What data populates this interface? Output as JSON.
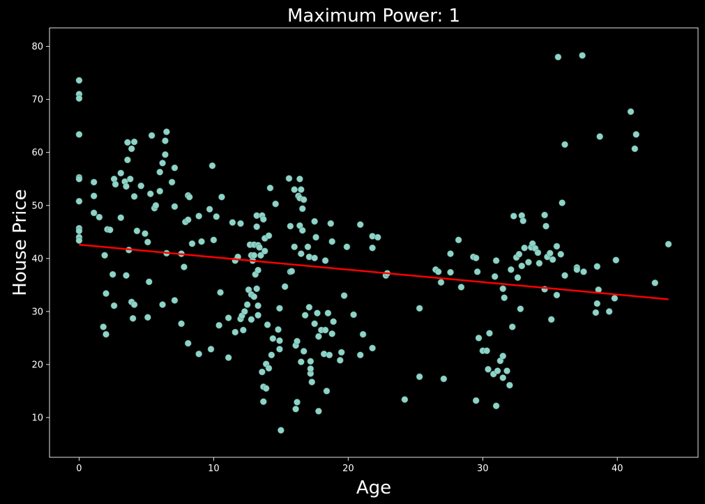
{
  "chart_data": {
    "type": "scatter",
    "title": "Maximum Power: 1",
    "xlabel": "Age",
    "ylabel": "House Price",
    "xlim": [
      -2.2,
      46.0
    ],
    "ylim": [
      2.5,
      83.5
    ],
    "xticks": [
      0,
      10,
      20,
      30,
      40
    ],
    "yticks": [
      10,
      20,
      30,
      40,
      50,
      60,
      70,
      80
    ],
    "grid": false,
    "legend": "none",
    "colors": {
      "background": "#000000",
      "points": "#8dd3c7",
      "fit_line": "#ff0000",
      "text": "#ffffff"
    },
    "points": [
      [
        0,
        73.6
      ],
      [
        0,
        71.0
      ],
      [
        0,
        70.2
      ],
      [
        0,
        63.4
      ],
      [
        0,
        55.3
      ],
      [
        0,
        55.0
      ],
      [
        0,
        50.8
      ],
      [
        0,
        45.7
      ],
      [
        0,
        45.2
      ],
      [
        0,
        44.0
      ],
      [
        0,
        43.4
      ],
      [
        1.1,
        54.4
      ],
      [
        1.1,
        51.8
      ],
      [
        1.1,
        48.6
      ],
      [
        1.5,
        47.8
      ],
      [
        1.8,
        27.1
      ],
      [
        1.9,
        40.6
      ],
      [
        2.0,
        33.4
      ],
      [
        2.0,
        25.7
      ],
      [
        2.1,
        45.5
      ],
      [
        2.3,
        45.4
      ],
      [
        2.5,
        37.0
      ],
      [
        2.6,
        31.1
      ],
      [
        2.6,
        55.0
      ],
      [
        2.7,
        54.0
      ],
      [
        3.1,
        56.1
      ],
      [
        3.1,
        47.7
      ],
      [
        3.4,
        54.5
      ],
      [
        3.5,
        53.6
      ],
      [
        3.5,
        36.8
      ],
      [
        3.6,
        58.6
      ],
      [
        3.6,
        61.9
      ],
      [
        3.7,
        41.6
      ],
      [
        3.8,
        55.0
      ],
      [
        3.9,
        60.7
      ],
      [
        3.9,
        31.8
      ],
      [
        4.0,
        28.7
      ],
      [
        4.1,
        31.3
      ],
      [
        4.1,
        62.0
      ],
      [
        4.1,
        51.7
      ],
      [
        4.3,
        45.2
      ],
      [
        4.6,
        53.7
      ],
      [
        4.9,
        44.7
      ],
      [
        5.1,
        43.1
      ],
      [
        5.1,
        28.9
      ],
      [
        5.2,
        35.6
      ],
      [
        5.3,
        52.2
      ],
      [
        5.4,
        63.2
      ],
      [
        5.6,
        49.5
      ],
      [
        5.7,
        50.0
      ],
      [
        6.0,
        56.3
      ],
      [
        6.0,
        52.7
      ],
      [
        6.2,
        31.3
      ],
      [
        6.2,
        58.0
      ],
      [
        6.4,
        62.2
      ],
      [
        6.4,
        59.6
      ],
      [
        6.5,
        63.9
      ],
      [
        6.5,
        41.0
      ],
      [
        6.9,
        54.4
      ],
      [
        7.1,
        32.1
      ],
      [
        7.1,
        57.1
      ],
      [
        7.1,
        49.8
      ],
      [
        7.6,
        27.7
      ],
      [
        7.6,
        40.9
      ],
      [
        7.8,
        38.4
      ],
      [
        7.9,
        46.9
      ],
      [
        8.1,
        47.3
      ],
      [
        8.1,
        24.0
      ],
      [
        8.1,
        51.9
      ],
      [
        8.2,
        51.6
      ],
      [
        8.4,
        42.8
      ],
      [
        8.9,
        22.0
      ],
      [
        8.9,
        48.0
      ],
      [
        9.1,
        43.2
      ],
      [
        9.7,
        49.3
      ],
      [
        9.8,
        22.9
      ],
      [
        9.9,
        57.5
      ],
      [
        10.0,
        43.5
      ],
      [
        10.2,
        47.9
      ],
      [
        10.4,
        27.4
      ],
      [
        10.5,
        33.6
      ],
      [
        10.6,
        51.6
      ],
      [
        11.1,
        21.3
      ],
      [
        11.1,
        28.8
      ],
      [
        11.4,
        46.8
      ],
      [
        11.6,
        26.1
      ],
      [
        11.6,
        39.6
      ],
      [
        11.8,
        40.3
      ],
      [
        12.0,
        46.6
      ],
      [
        12.0,
        28.6
      ],
      [
        12.1,
        29.2
      ],
      [
        12.2,
        26.5
      ],
      [
        12.3,
        30.0
      ],
      [
        12.5,
        31.3
      ],
      [
        12.6,
        34.1
      ],
      [
        12.7,
        42.6
      ],
      [
        12.8,
        28.5
      ],
      [
        12.8,
        40.6
      ],
      [
        12.8,
        33.2
      ],
      [
        12.9,
        39.6
      ],
      [
        13.0,
        40.6
      ],
      [
        13.0,
        42.6
      ],
      [
        13.0,
        32.8
      ],
      [
        13.1,
        37.0
      ],
      [
        13.2,
        46.0
      ],
      [
        13.2,
        48.1
      ],
      [
        13.2,
        34.3
      ],
      [
        13.3,
        29.3
      ],
      [
        13.3,
        31.1
      ],
      [
        13.3,
        42.5
      ],
      [
        13.3,
        37.8
      ],
      [
        13.4,
        42.1
      ],
      [
        13.5,
        40.6
      ],
      [
        13.6,
        48.1
      ],
      [
        13.6,
        18.6
      ],
      [
        13.7,
        13.0
      ],
      [
        13.7,
        15.8
      ],
      [
        13.7,
        47.4
      ],
      [
        13.8,
        41.4
      ],
      [
        13.8,
        43.8
      ],
      [
        13.9,
        15.5
      ],
      [
        13.9,
        20.1
      ],
      [
        14.0,
        27.5
      ],
      [
        14.1,
        19.3
      ],
      [
        14.1,
        44.3
      ],
      [
        14.2,
        53.3
      ],
      [
        14.3,
        21.8
      ],
      [
        14.4,
        24.9
      ],
      [
        14.6,
        50.3
      ],
      [
        14.8,
        26.6
      ],
      [
        14.9,
        22.9
      ],
      [
        14.9,
        24.5
      ],
      [
        14.9,
        30.6
      ],
      [
        15.0,
        7.6
      ],
      [
        15.3,
        34.7
      ],
      [
        15.6,
        55.1
      ],
      [
        15.7,
        37.5
      ],
      [
        15.7,
        46.1
      ],
      [
        15.8,
        37.6
      ],
      [
        16.0,
        42.2
      ],
      [
        16.0,
        53.0
      ],
      [
        16.1,
        23.6
      ],
      [
        16.1,
        11.6
      ],
      [
        16.2,
        12.9
      ],
      [
        16.2,
        24.4
      ],
      [
        16.3,
        51.8
      ],
      [
        16.4,
        51.4
      ],
      [
        16.4,
        55.0
      ],
      [
        16.4,
        46.2
      ],
      [
        16.5,
        20.5
      ],
      [
        16.5,
        40.9
      ],
      [
        16.5,
        53.0
      ],
      [
        16.6,
        45.3
      ],
      [
        16.6,
        49.4
      ],
      [
        16.7,
        51.1
      ],
      [
        16.7,
        22.5
      ],
      [
        16.8,
        29.3
      ],
      [
        17.0,
        42.2
      ],
      [
        17.1,
        40.3
      ],
      [
        17.1,
        30.8
      ],
      [
        17.2,
        20.6
      ],
      [
        17.2,
        18.3
      ],
      [
        17.2,
        19.2
      ],
      [
        17.3,
        16.7
      ],
      [
        17.5,
        47.0
      ],
      [
        17.5,
        40.1
      ],
      [
        17.5,
        27.7
      ],
      [
        17.6,
        44.0
      ],
      [
        17.7,
        29.7
      ],
      [
        17.8,
        11.2
      ],
      [
        17.8,
        25.3
      ],
      [
        18.0,
        26.5
      ],
      [
        18.2,
        22.0
      ],
      [
        18.3,
        39.6
      ],
      [
        18.3,
        26.5
      ],
      [
        18.4,
        15.0
      ],
      [
        18.5,
        29.7
      ],
      [
        18.6,
        21.8
      ],
      [
        18.7,
        46.6
      ],
      [
        18.8,
        43.2
      ],
      [
        18.8,
        25.8
      ],
      [
        18.9,
        28.1
      ],
      [
        19.4,
        20.8
      ],
      [
        19.5,
        22.3
      ],
      [
        19.7,
        33.0
      ],
      [
        19.9,
        42.2
      ],
      [
        20.4,
        29.4
      ],
      [
        20.9,
        46.4
      ],
      [
        20.9,
        21.8
      ],
      [
        21.1,
        25.7
      ],
      [
        21.8,
        44.2
      ],
      [
        21.8,
        42.0
      ],
      [
        21.8,
        23.1
      ],
      [
        22.2,
        44.0
      ],
      [
        22.8,
        36.8
      ],
      [
        22.9,
        37.2
      ],
      [
        24.2,
        13.4
      ],
      [
        25.3,
        30.6
      ],
      [
        25.3,
        17.7
      ],
      [
        26.5,
        37.9
      ],
      [
        26.7,
        37.5
      ],
      [
        26.9,
        35.5
      ],
      [
        27.1,
        17.3
      ],
      [
        27.6,
        40.9
      ],
      [
        27.6,
        37.4
      ],
      [
        28.2,
        43.5
      ],
      [
        28.4,
        34.6
      ],
      [
        29.3,
        40.3
      ],
      [
        29.5,
        40.1
      ],
      [
        29.5,
        13.2
      ],
      [
        29.6,
        37.5
      ],
      [
        29.7,
        25.0
      ],
      [
        30.0,
        22.6
      ],
      [
        30.3,
        22.6
      ],
      [
        30.4,
        19.1
      ],
      [
        30.5,
        25.9
      ],
      [
        30.8,
        18.2
      ],
      [
        30.9,
        36.6
      ],
      [
        31.0,
        12.2
      ],
      [
        31.0,
        39.6
      ],
      [
        31.1,
        18.8
      ],
      [
        31.3,
        20.7
      ],
      [
        31.5,
        21.6
      ],
      [
        31.5,
        34.3
      ],
      [
        31.5,
        17.5
      ],
      [
        31.6,
        32.6
      ],
      [
        31.8,
        18.8
      ],
      [
        32.0,
        16.1
      ],
      [
        32.1,
        37.9
      ],
      [
        32.2,
        27.1
      ],
      [
        32.3,
        48.0
      ],
      [
        32.5,
        40.2
      ],
      [
        32.6,
        36.4
      ],
      [
        32.7,
        40.8
      ],
      [
        32.8,
        30.5
      ],
      [
        32.9,
        38.6
      ],
      [
        32.9,
        48.1
      ],
      [
        33.0,
        47.1
      ],
      [
        33.1,
        42.0
      ],
      [
        33.4,
        39.3
      ],
      [
        33.6,
        42.1
      ],
      [
        33.7,
        42.8
      ],
      [
        33.9,
        41.9
      ],
      [
        34.1,
        41.1
      ],
      [
        34.2,
        39.1
      ],
      [
        34.6,
        48.2
      ],
      [
        34.6,
        34.2
      ],
      [
        34.7,
        46.1
      ],
      [
        34.8,
        40.3
      ],
      [
        35.0,
        41.0
      ],
      [
        35.1,
        28.5
      ],
      [
        35.2,
        39.8
      ],
      [
        35.5,
        33.1
      ],
      [
        35.5,
        42.3
      ],
      [
        35.6,
        78.0
      ],
      [
        35.8,
        40.8
      ],
      [
        35.9,
        50.5
      ],
      [
        36.1,
        36.8
      ],
      [
        36.1,
        61.5
      ],
      [
        37.0,
        38.3
      ],
      [
        37.0,
        37.9
      ],
      [
        37.4,
        78.3
      ],
      [
        37.5,
        37.5
      ],
      [
        38.4,
        29.8
      ],
      [
        38.5,
        38.5
      ],
      [
        38.5,
        31.5
      ],
      [
        38.6,
        34.1
      ],
      [
        38.7,
        63.0
      ],
      [
        39.4,
        30.0
      ],
      [
        39.8,
        32.5
      ],
      [
        39.9,
        39.7
      ],
      [
        41.0,
        67.7
      ],
      [
        41.3,
        60.7
      ],
      [
        41.4,
        63.4
      ],
      [
        42.8,
        35.4
      ],
      [
        43.8,
        42.7
      ]
    ],
    "fit_line": {
      "x": [
        0,
        43.8
      ],
      "y": [
        42.6,
        32.3
      ]
    }
  }
}
